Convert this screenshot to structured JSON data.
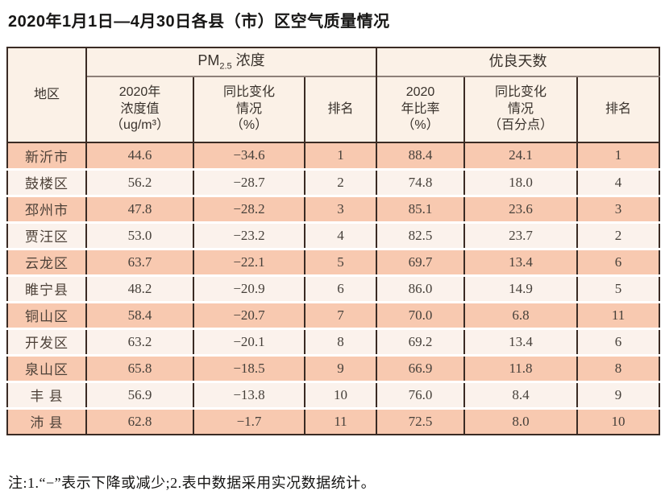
{
  "title": "2020年1月1日—4月30日各县（市）区空气质量情况",
  "note": "注:1.“−”表示下降或减少;2.表中数据采用实况数据统计。",
  "colors": {
    "row_odd_bg": "#f8c9b0",
    "row_even_bg": "#fbf2ec",
    "header_bg": "#fbf1e7",
    "border": "#3a2b24",
    "row_separator": "#ffffff",
    "header_separator": "#8d8078"
  },
  "table": {
    "region_header": "地区",
    "group1": {
      "pm_prefix": "PM",
      "pm_sub": "2.5",
      "pm_suffix": " 浓度"
    },
    "group2": "优良天数",
    "subheaders": {
      "pm_value": "2020年\n浓度值\n（ug/m³）",
      "pm_change": "同比变化\n情况\n（%）",
      "pm_rank": "排名",
      "good_rate": "2020\n年比率\n（%）",
      "good_change": "同比变化\n情况\n（百分点）",
      "good_rank": "排名"
    },
    "rows": [
      [
        "新沂市",
        "44.6",
        "−34.6",
        "1",
        "88.4",
        "24.1",
        "1"
      ],
      [
        "鼓楼区",
        "56.2",
        "−28.7",
        "2",
        "74.8",
        "18.0",
        "4"
      ],
      [
        "邳州市",
        "47.8",
        "−28.2",
        "3",
        "85.1",
        "23.6",
        "3"
      ],
      [
        "贾汪区",
        "53.0",
        "−23.2",
        "4",
        "82.5",
        "23.7",
        "2"
      ],
      [
        "云龙区",
        "63.7",
        "−22.1",
        "5",
        "69.7",
        "13.4",
        "6"
      ],
      [
        "睢宁县",
        "48.2",
        "−20.9",
        "6",
        "86.0",
        "14.9",
        "5"
      ],
      [
        "铜山区",
        "58.4",
        "−20.7",
        "7",
        "70.0",
        "6.8",
        "11"
      ],
      [
        "开发区",
        "63.2",
        "−20.1",
        "8",
        "69.2",
        "13.4",
        "6"
      ],
      [
        "泉山区",
        "65.8",
        "−18.5",
        "9",
        "66.9",
        "11.8",
        "8"
      ],
      [
        "丰 县",
        "56.9",
        "−13.8",
        "10",
        "76.0",
        "8.4",
        "9"
      ],
      [
        "沛 县",
        "62.8",
        "−1.7",
        "11",
        "72.5",
        "8.0",
        "10"
      ]
    ]
  },
  "chart_data": {
    "type": "table",
    "title": "2020年1月1日—4月30日各县（市）区空气质量情况",
    "columns": [
      "地区",
      "PM2.5浓度 2020年浓度值（ug/m³）",
      "PM2.5浓度 同比变化情况（%）",
      "PM2.5浓度 排名",
      "优良天数 2020年比率（%）",
      "优良天数 同比变化情况（百分点）",
      "优良天数 排名"
    ],
    "rows": [
      [
        "新沂市",
        44.6,
        -34.6,
        1,
        88.4,
        24.1,
        1
      ],
      [
        "鼓楼区",
        56.2,
        -28.7,
        2,
        74.8,
        18.0,
        4
      ],
      [
        "邳州市",
        47.8,
        -28.2,
        3,
        85.1,
        23.6,
        3
      ],
      [
        "贾汪区",
        53.0,
        -23.2,
        4,
        82.5,
        23.7,
        2
      ],
      [
        "云龙区",
        63.7,
        -22.1,
        5,
        69.7,
        13.4,
        6
      ],
      [
        "睢宁县",
        48.2,
        -20.9,
        6,
        86.0,
        14.9,
        5
      ],
      [
        "铜山区",
        58.4,
        -20.7,
        7,
        70.0,
        6.8,
        11
      ],
      [
        "开发区",
        63.2,
        -20.1,
        8,
        69.2,
        13.4,
        6
      ],
      [
        "泉山区",
        65.8,
        -18.5,
        9,
        66.9,
        11.8,
        8
      ],
      [
        "丰县",
        56.9,
        -13.8,
        10,
        76.0,
        8.4,
        9
      ],
      [
        "沛县",
        62.8,
        -1.7,
        11,
        72.5,
        8.0,
        10
      ]
    ]
  }
}
